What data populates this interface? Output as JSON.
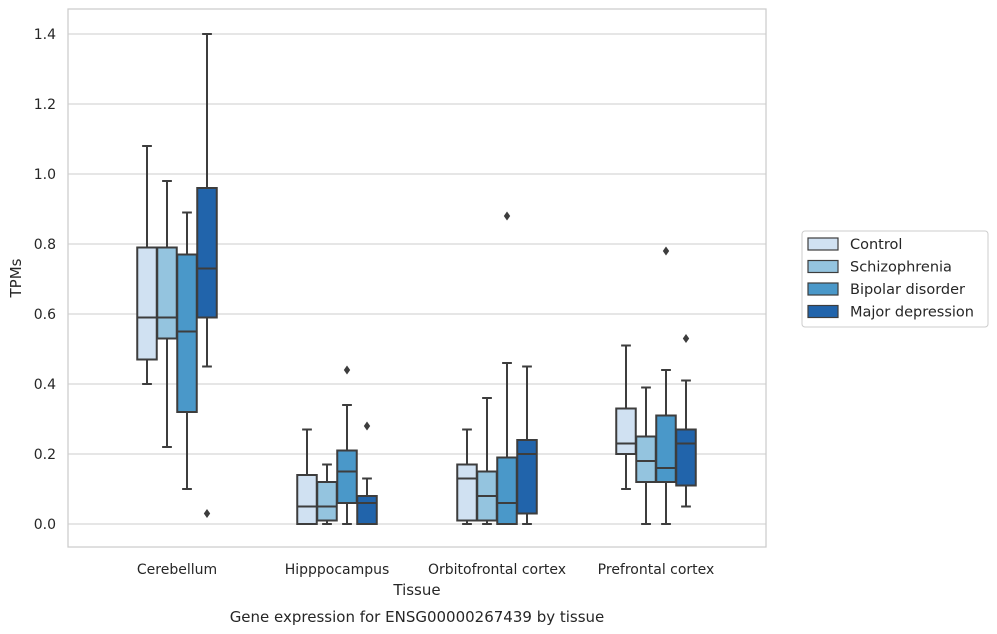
{
  "chart_data": {
    "type": "box",
    "xlabel": "Tissue",
    "ylabel": "TPMs",
    "caption": "Gene expression for ENSG00000267439 by tissue",
    "ylim": [
      -0.07,
      1.47
    ],
    "yticks": [
      "0.0",
      "0.2",
      "0.4",
      "0.6",
      "0.8",
      "1.0",
      "1.2",
      "1.4"
    ],
    "grid": "horizontal",
    "legend_position": "right",
    "categories": [
      "Cerebellum",
      "Hipppocampus",
      "Orbitofrontal cortex",
      "Prefrontal cortex"
    ],
    "series": [
      {
        "name": "Control",
        "color": "#d0e1f2",
        "boxes": [
          {
            "whisker_low": 0.4,
            "q1": 0.47,
            "median": 0.59,
            "q3": 0.79,
            "whisker_high": 1.08,
            "outliers": []
          },
          {
            "whisker_low": 0.0,
            "q1": 0.0,
            "median": 0.05,
            "q3": 0.14,
            "whisker_high": 0.27,
            "outliers": []
          },
          {
            "whisker_low": 0.0,
            "q1": 0.01,
            "median": 0.13,
            "q3": 0.17,
            "whisker_high": 0.27,
            "outliers": []
          },
          {
            "whisker_low": 0.1,
            "q1": 0.2,
            "median": 0.23,
            "q3": 0.33,
            "whisker_high": 0.51,
            "outliers": []
          }
        ]
      },
      {
        "name": "Schizophrenia",
        "color": "#94c4df",
        "boxes": [
          {
            "whisker_low": 0.22,
            "q1": 0.53,
            "median": 0.59,
            "q3": 0.79,
            "whisker_high": 0.98,
            "outliers": []
          },
          {
            "whisker_low": 0.0,
            "q1": 0.01,
            "median": 0.05,
            "q3": 0.12,
            "whisker_high": 0.17,
            "outliers": []
          },
          {
            "whisker_low": 0.0,
            "q1": 0.01,
            "median": 0.08,
            "q3": 0.15,
            "whisker_high": 0.36,
            "outliers": []
          },
          {
            "whisker_low": 0.0,
            "q1": 0.12,
            "median": 0.18,
            "q3": 0.25,
            "whisker_high": 0.39,
            "outliers": []
          }
        ]
      },
      {
        "name": "Bipolar disorder",
        "color": "#4a98c9",
        "boxes": [
          {
            "whisker_low": 0.1,
            "q1": 0.32,
            "median": 0.55,
            "q3": 0.77,
            "whisker_high": 0.89,
            "outliers": []
          },
          {
            "whisker_low": 0.0,
            "q1": 0.06,
            "median": 0.15,
            "q3": 0.21,
            "whisker_high": 0.34,
            "outliers": [
              0.44
            ]
          },
          {
            "whisker_low": 0.0,
            "q1": 0.0,
            "median": 0.06,
            "q3": 0.19,
            "whisker_high": 0.46,
            "outliers": [
              0.88
            ]
          },
          {
            "whisker_low": 0.0,
            "q1": 0.12,
            "median": 0.16,
            "q3": 0.31,
            "whisker_high": 0.44,
            "outliers": [
              0.78
            ]
          }
        ]
      },
      {
        "name": "Major depression",
        "color": "#2164ab",
        "boxes": [
          {
            "whisker_low": 0.45,
            "q1": 0.59,
            "median": 0.73,
            "q3": 0.96,
            "whisker_high": 1.4,
            "outliers": [
              0.03
            ]
          },
          {
            "whisker_low": 0.0,
            "q1": 0.0,
            "median": 0.06,
            "q3": 0.08,
            "whisker_high": 0.13,
            "outliers": [
              0.28
            ]
          },
          {
            "whisker_low": 0.0,
            "q1": 0.03,
            "median": 0.2,
            "q3": 0.24,
            "whisker_high": 0.45,
            "outliers": []
          },
          {
            "whisker_low": 0.05,
            "q1": 0.11,
            "median": 0.23,
            "q3": 0.27,
            "whisker_high": 0.41,
            "outliers": [
              0.53
            ]
          }
        ]
      }
    ]
  }
}
